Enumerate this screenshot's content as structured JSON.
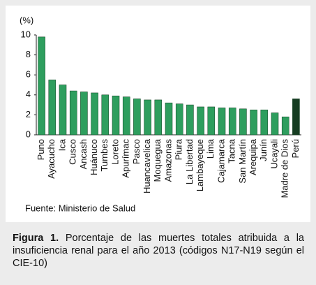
{
  "chart_data": {
    "type": "bar",
    "unit_label": "(%)",
    "categories": [
      "Puno",
      "Ayacucho",
      "Ica",
      "Cusco",
      "Ancash",
      "Huánuco",
      "Tumbes",
      "Loreto",
      "Apurímac",
      "Pasco",
      "Huancavelica",
      "Moquegua",
      "Amazonas",
      "Piura",
      "La Libertad",
      "Lambayeque",
      "Lima",
      "Cajamarca",
      "Tacna",
      "San Martín",
      "Arequipa",
      "Junín",
      "Ucayali",
      "Madre de Dios",
      "Perú"
    ],
    "values": [
      9.8,
      5.5,
      5.0,
      4.4,
      4.3,
      4.2,
      4.0,
      3.9,
      3.8,
      3.6,
      3.5,
      3.5,
      3.2,
      3.1,
      3.0,
      2.8,
      2.8,
      2.7,
      2.7,
      2.6,
      2.5,
      2.5,
      2.2,
      1.8,
      3.6
    ],
    "colors": [
      "#2e9e5e",
      "#2e9e5e",
      "#2e9e5e",
      "#2e9e5e",
      "#2e9e5e",
      "#2e9e5e",
      "#2e9e5e",
      "#2e9e5e",
      "#2e9e5e",
      "#2e9e5e",
      "#2e9e5e",
      "#2e9e5e",
      "#2e9e5e",
      "#2e9e5e",
      "#2e9e5e",
      "#2e9e5e",
      "#2e9e5e",
      "#2e9e5e",
      "#2e9e5e",
      "#2e9e5e",
      "#2e9e5e",
      "#2e9e5e",
      "#2e9e5e",
      "#2e9e5e",
      "#163d22"
    ],
    "ylim": [
      0,
      10
    ],
    "yticks": [
      0,
      2,
      4,
      6,
      8,
      10
    ],
    "grid": false,
    "source": "Fuente:  Ministerio de Salud"
  },
  "caption": {
    "label": "Figura 1.",
    "text": "Porcentaje de las muertes totales atribuida a la insuficiencia renal para el año 2013 (códigos N17-N19 según el CIE-10)"
  }
}
